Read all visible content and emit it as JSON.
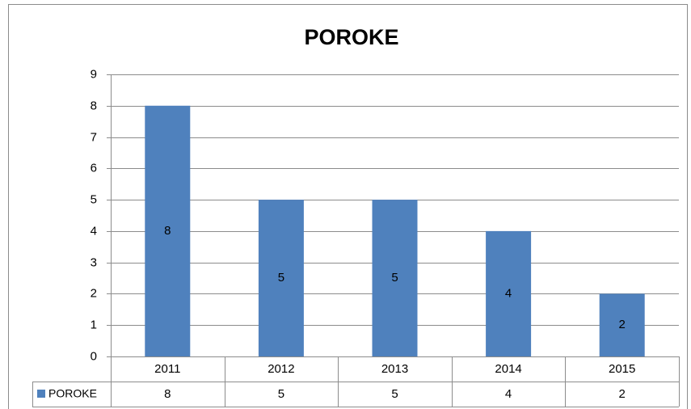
{
  "chart_data": {
    "type": "bar",
    "title": "POROKE",
    "categories": [
      "2011",
      "2012",
      "2013",
      "2014",
      "2015"
    ],
    "series": [
      {
        "name": "POROKE",
        "color": "#4f81bd",
        "values": [
          8,
          5,
          5,
          4,
          2
        ]
      }
    ],
    "ylim": [
      0,
      9
    ],
    "yticks": [
      0,
      1,
      2,
      3,
      4,
      5,
      6,
      7,
      8,
      9
    ],
    "grid": true
  }
}
